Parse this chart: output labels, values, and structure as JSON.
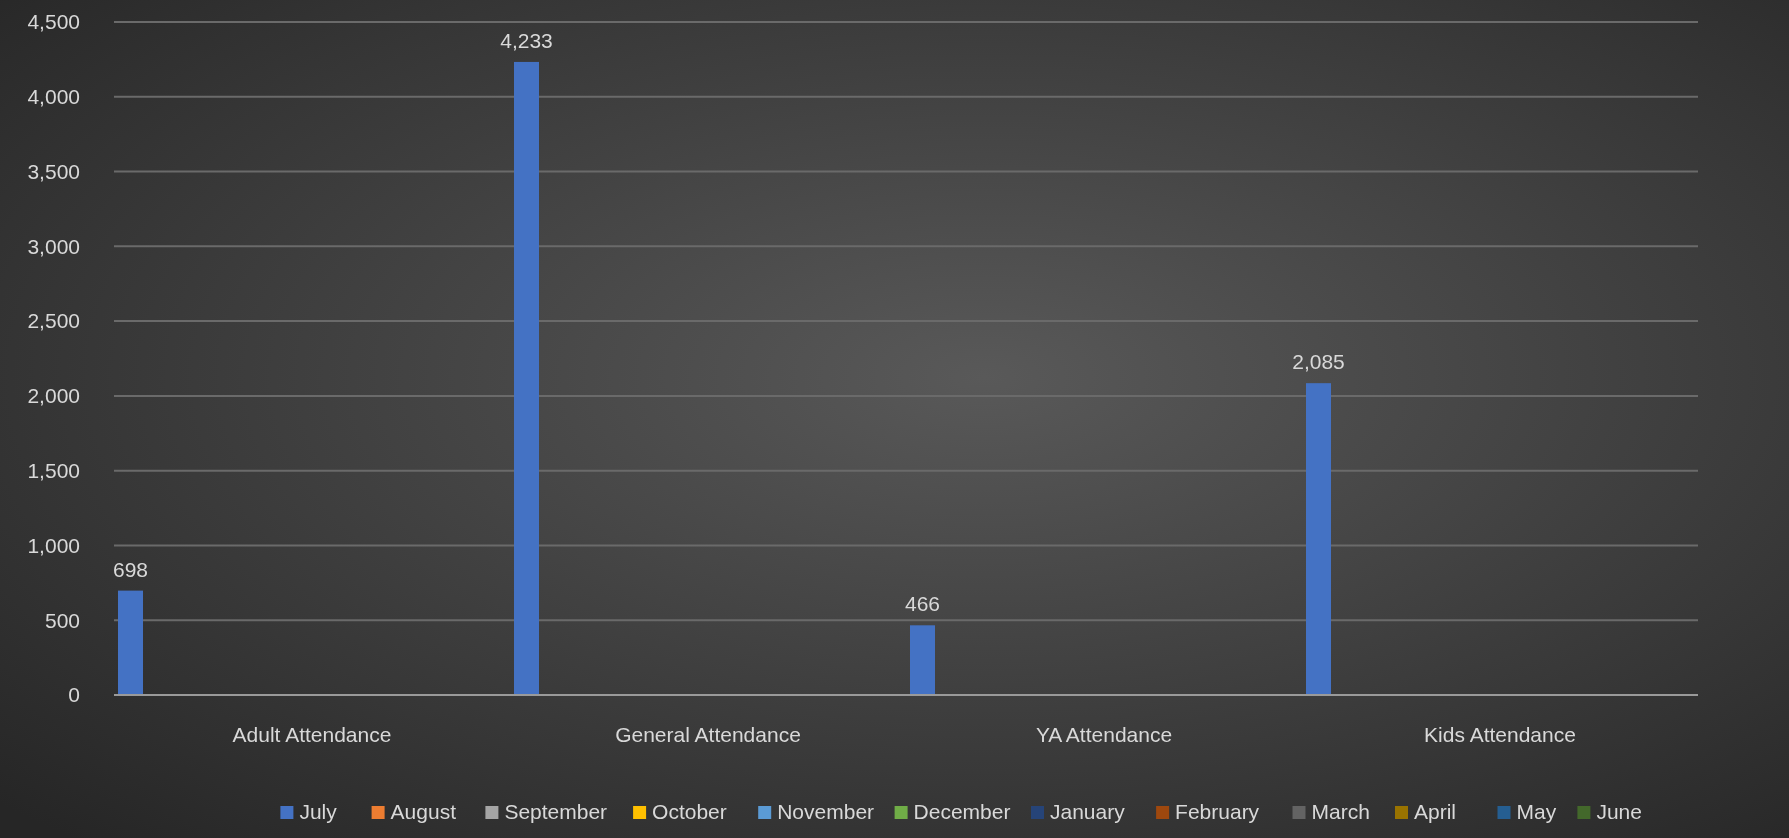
{
  "chart_data": {
    "type": "bar",
    "categories": [
      "Adult Attendance",
      "General Attendance",
      "YA Attendance",
      "Kids Attendance"
    ],
    "series": [
      {
        "name": "July",
        "color": "#4472c4",
        "values": [
          698,
          4233,
          466,
          2085
        ],
        "value_labels": [
          "698",
          "4,233",
          "466",
          "2,085"
        ]
      },
      {
        "name": "August",
        "color": "#ed7d31",
        "values": [
          null,
          null,
          null,
          null
        ]
      },
      {
        "name": "September",
        "color": "#a5a5a5",
        "values": [
          null,
          null,
          null,
          null
        ]
      },
      {
        "name": "October",
        "color": "#ffc000",
        "values": [
          null,
          null,
          null,
          null
        ]
      },
      {
        "name": "November",
        "color": "#5b9bd5",
        "values": [
          null,
          null,
          null,
          null
        ]
      },
      {
        "name": "December",
        "color": "#70ad47",
        "values": [
          null,
          null,
          null,
          null
        ]
      },
      {
        "name": "January",
        "color": "#264478",
        "values": [
          null,
          null,
          null,
          null
        ]
      },
      {
        "name": "February",
        "color": "#9e480e",
        "values": [
          null,
          null,
          null,
          null
        ]
      },
      {
        "name": "March",
        "color": "#636363",
        "values": [
          null,
          null,
          null,
          null
        ]
      },
      {
        "name": "April",
        "color": "#997300",
        "values": [
          null,
          null,
          null,
          null
        ]
      },
      {
        "name": "May",
        "color": "#255e91",
        "values": [
          null,
          null,
          null,
          null
        ]
      },
      {
        "name": "June",
        "color": "#43682b",
        "values": [
          null,
          null,
          null,
          null
        ]
      }
    ],
    "ylim": [
      0,
      4500
    ],
    "yticks": [
      {
        "value": 0,
        "label": "0"
      },
      {
        "value": 500,
        "label": "500"
      },
      {
        "value": 1000,
        "label": "1,000"
      },
      {
        "value": 1500,
        "label": "1,500"
      },
      {
        "value": 2000,
        "label": "2,000"
      },
      {
        "value": 2500,
        "label": "2,500"
      },
      {
        "value": 3000,
        "label": "3,000"
      },
      {
        "value": 3500,
        "label": "3,500"
      },
      {
        "value": 4000,
        "label": "4,000"
      },
      {
        "value": 4500,
        "label": "4,500"
      }
    ],
    "grid": "y",
    "legend": "bottom"
  }
}
